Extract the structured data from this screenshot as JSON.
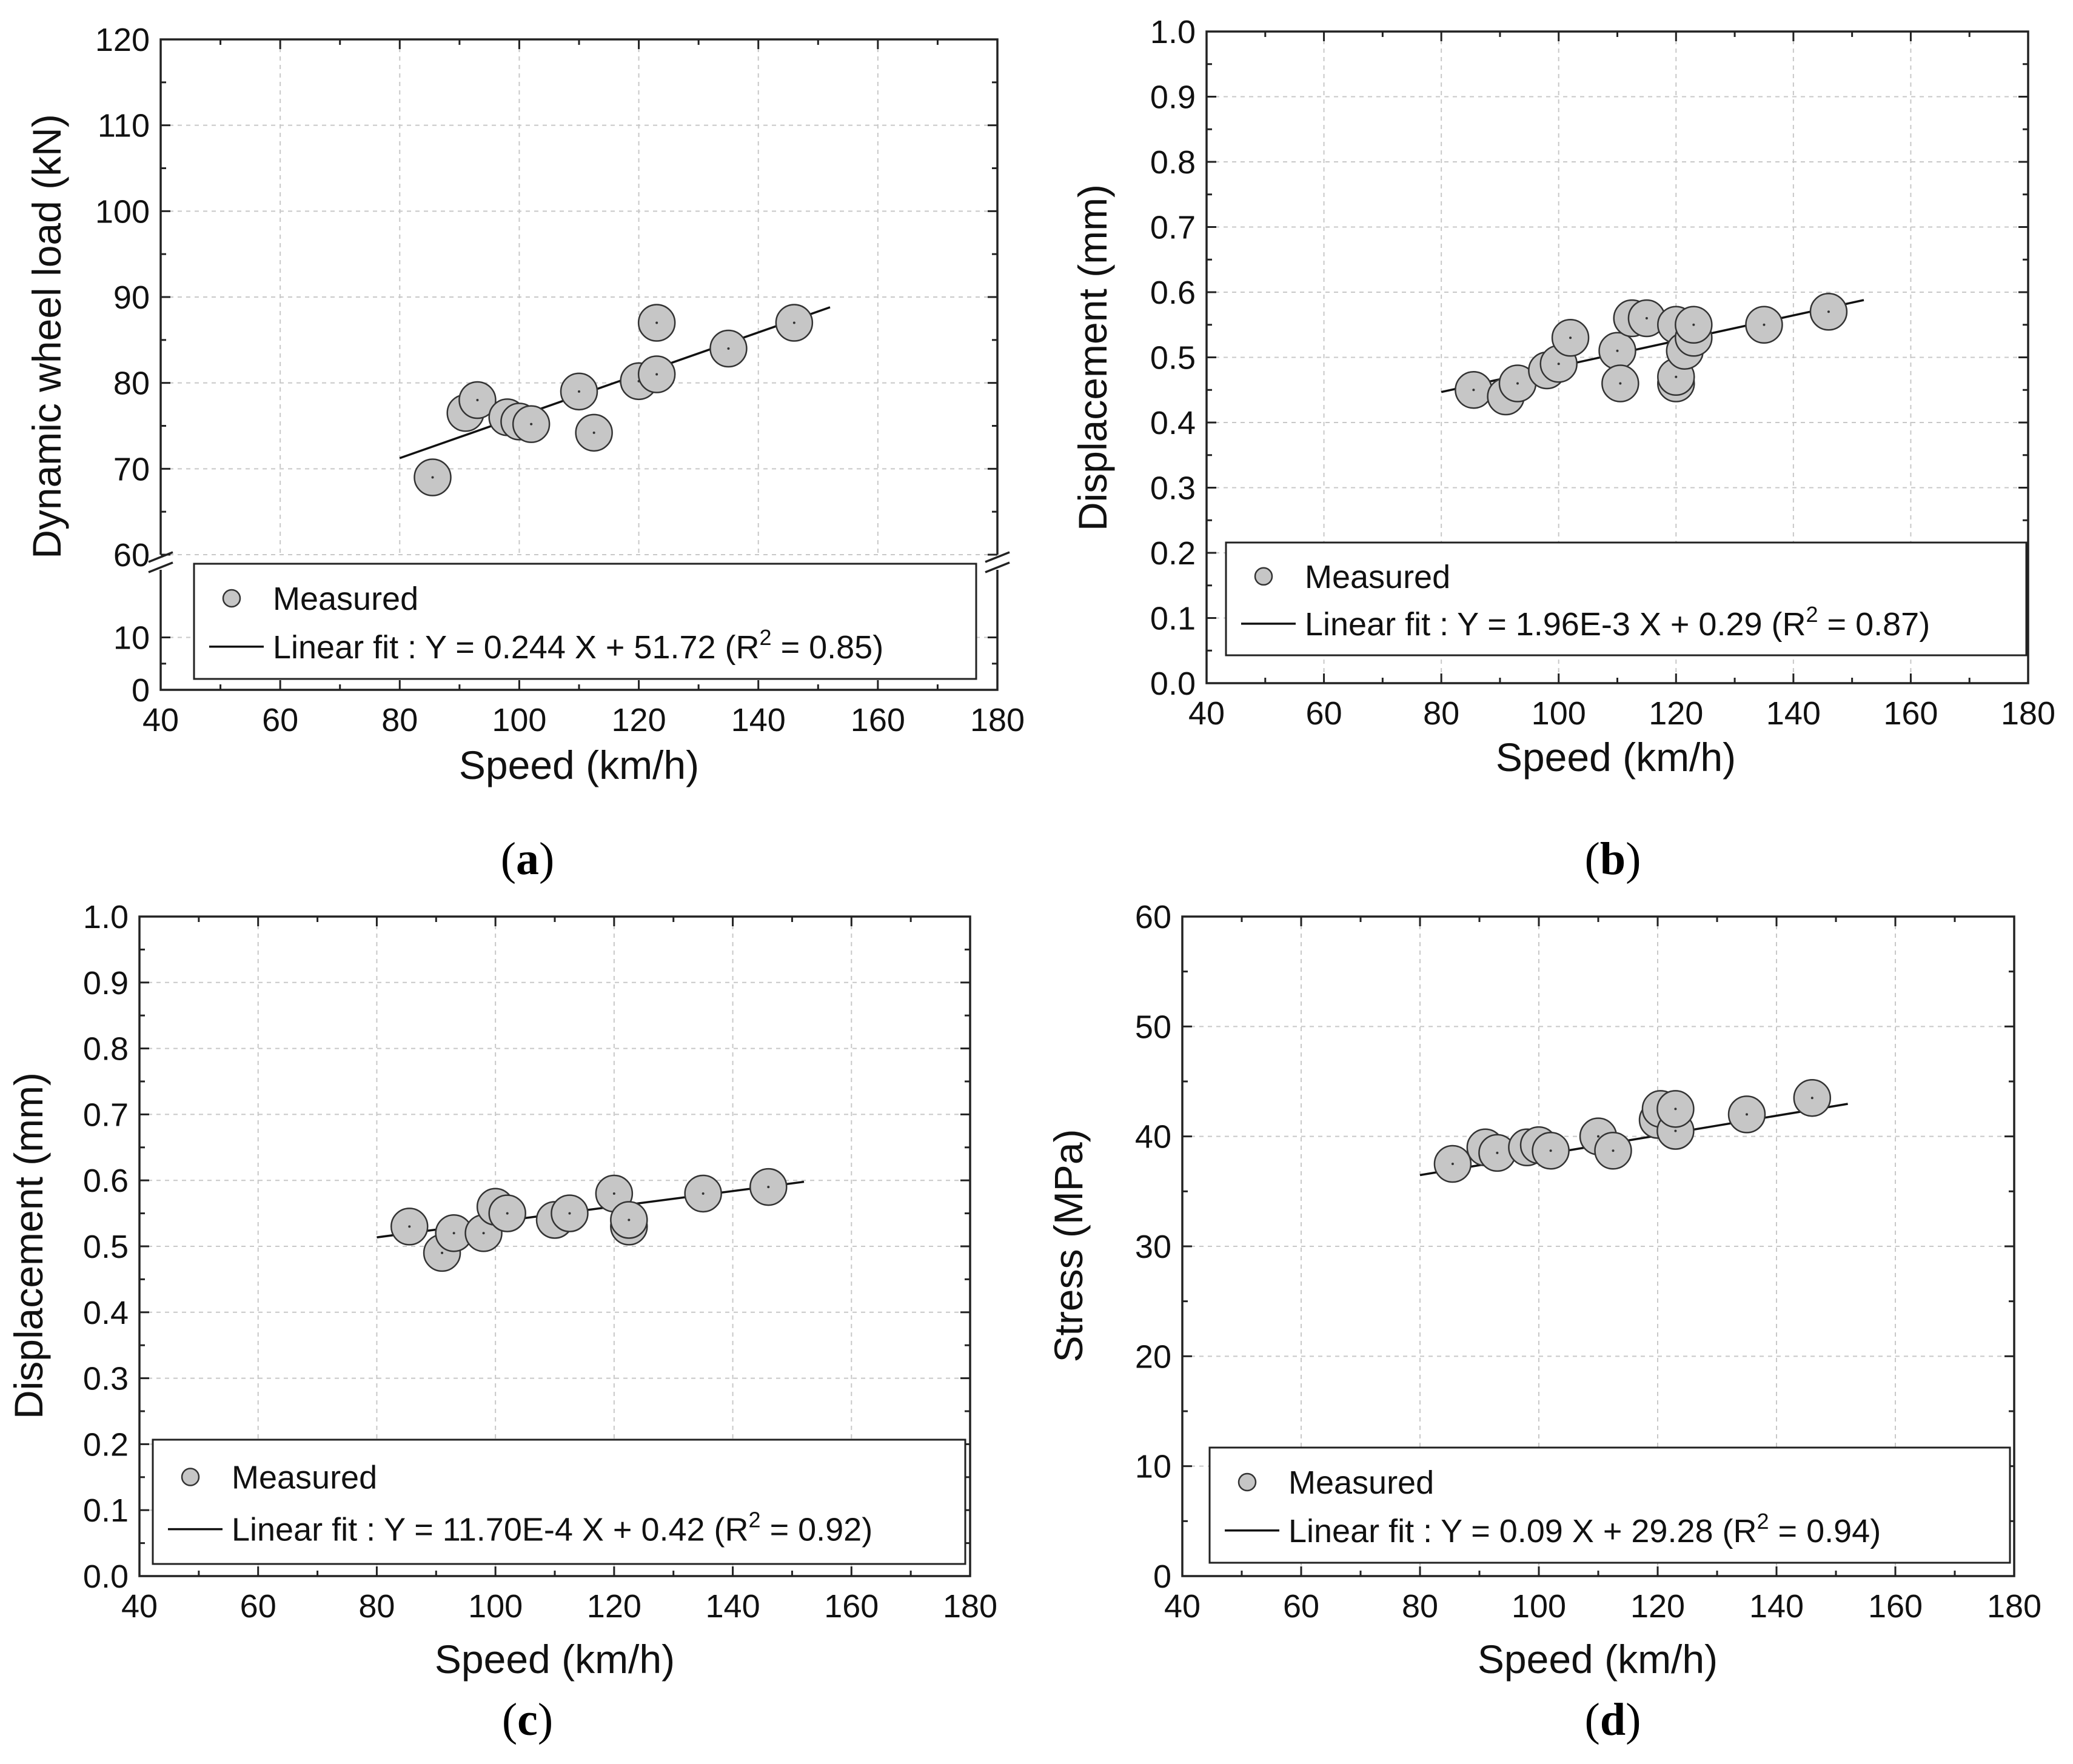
{
  "figure": {
    "panels": [
      {
        "label": "a"
      },
      {
        "label": "b"
      },
      {
        "label": "c"
      },
      {
        "label": "d"
      }
    ]
  },
  "chart_data": [
    {
      "type": "scatter",
      "panel": "(a)",
      "xlabel": "Speed (km/h)",
      "ylabel": "Dynamic wheel load (kN)",
      "xlim": [
        40,
        180
      ],
      "ylim": [
        0,
        120
      ],
      "axis_break": {
        "lower": [
          0,
          20
        ],
        "upper": [
          60,
          120
        ]
      },
      "xticks": [
        40,
        60,
        80,
        100,
        120,
        140,
        160,
        180
      ],
      "yticks": [
        0,
        10,
        60,
        70,
        80,
        90,
        100,
        110,
        120
      ],
      "grid": true,
      "series": [
        {
          "name": "Measured",
          "x": [
            85.5,
            91,
            93,
            98,
            100,
            102,
            110,
            112.5,
            120,
            123,
            123,
            135,
            146
          ],
          "y": [
            69,
            76.5,
            78,
            76,
            75.5,
            75.2,
            79,
            74.2,
            80.2,
            81,
            87,
            84,
            87
          ]
        }
      ],
      "fit": {
        "name": "Linear fit",
        "slope": 0.244,
        "intercept": 51.72,
        "x_range": [
          80,
          152
        ]
      },
      "legend": {
        "measured": "Measured",
        "fit_prefix": "Linear fit : Y = 0.244 X + 51.72 (R",
        "fit_sup": "2",
        "fit_suffix": " = 0.85)"
      }
    },
    {
      "type": "scatter",
      "panel": "(b)",
      "xlabel": "Speed (km/h)",
      "ylabel": "Displacement (mm)",
      "xlim": [
        40,
        180
      ],
      "ylim": [
        0,
        1.0
      ],
      "xticks": [
        40,
        60,
        80,
        100,
        120,
        140,
        160,
        180
      ],
      "yticks": [
        0.0,
        0.1,
        0.2,
        0.3,
        0.4,
        0.5,
        0.6,
        0.7,
        0.8,
        0.9,
        1.0
      ],
      "grid": true,
      "series": [
        {
          "name": "Measured",
          "x": [
            85.5,
            91,
            93,
            98,
            100,
            102,
            110,
            110.5,
            112.5,
            115,
            120,
            120,
            120,
            121.5,
            123,
            123,
            135,
            146
          ],
          "y": [
            0.45,
            0.44,
            0.46,
            0.48,
            0.49,
            0.53,
            0.51,
            0.46,
            0.56,
            0.56,
            0.55,
            0.46,
            0.47,
            0.51,
            0.53,
            0.55,
            0.55,
            0.57
          ]
        }
      ],
      "fit": {
        "name": "Linear fit",
        "slope": 0.00196,
        "intercept": 0.29,
        "x_range": [
          80,
          152
        ]
      },
      "legend": {
        "measured": "Measured",
        "fit_prefix": "Linear fit : Y = 1.96E-3 X + 0.29 (R",
        "fit_sup": "2",
        "fit_suffix": " = 0.87)"
      }
    },
    {
      "type": "scatter",
      "panel": "(c)",
      "xlabel": "Speed (km/h)",
      "ylabel": "Displacement (mm)",
      "xlim": [
        40,
        180
      ],
      "ylim": [
        0,
        1.0
      ],
      "xticks": [
        40,
        60,
        80,
        100,
        120,
        140,
        160,
        180
      ],
      "yticks": [
        0.0,
        0.1,
        0.2,
        0.3,
        0.4,
        0.5,
        0.6,
        0.7,
        0.8,
        0.9,
        1.0
      ],
      "grid": true,
      "series": [
        {
          "name": "Measured",
          "x": [
            85.5,
            91,
            93,
            98,
            100,
            102,
            110,
            112.5,
            120,
            122.5,
            122.5,
            135,
            146
          ],
          "y": [
            0.53,
            0.49,
            0.52,
            0.52,
            0.56,
            0.55,
            0.54,
            0.55,
            0.58,
            0.53,
            0.54,
            0.58,
            0.59
          ]
        }
      ],
      "fit": {
        "name": "Linear fit",
        "slope": 0.00117,
        "intercept": 0.42,
        "x_range": [
          80,
          152
        ]
      },
      "legend": {
        "measured": "Measured",
        "fit_prefix": "Linear fit : Y = 11.70E-4 X + 0.42 (R",
        "fit_sup": "2",
        "fit_suffix": " = 0.92)"
      }
    },
    {
      "type": "scatter",
      "panel": "(d)",
      "xlabel": "Speed (km/h)",
      "ylabel": "Stress (MPa)",
      "xlim": [
        40,
        180
      ],
      "ylim": [
        0,
        60
      ],
      "xticks": [
        40,
        60,
        80,
        100,
        120,
        140,
        160,
        180
      ],
      "yticks": [
        0,
        10,
        20,
        30,
        40,
        50,
        60
      ],
      "grid": true,
      "series": [
        {
          "name": "Measured",
          "x": [
            85.5,
            91,
            93,
            98,
            100,
            102,
            110,
            112.5,
            120,
            120.5,
            123,
            123,
            135,
            146
          ],
          "y": [
            37.5,
            39,
            38.5,
            39,
            39.2,
            38.7,
            40,
            38.7,
            41.5,
            42.5,
            40.5,
            42.5,
            42,
            43.5
          ]
        }
      ],
      "fit": {
        "name": "Linear fit",
        "slope": 0.09,
        "intercept": 29.28,
        "x_range": [
          80,
          152
        ]
      },
      "legend": {
        "measured": "Measured",
        "fit_prefix": "Linear fit : Y = 0.09 X + 29.28 (R",
        "fit_sup": "2",
        "fit_suffix": " = 0.94)"
      }
    }
  ]
}
